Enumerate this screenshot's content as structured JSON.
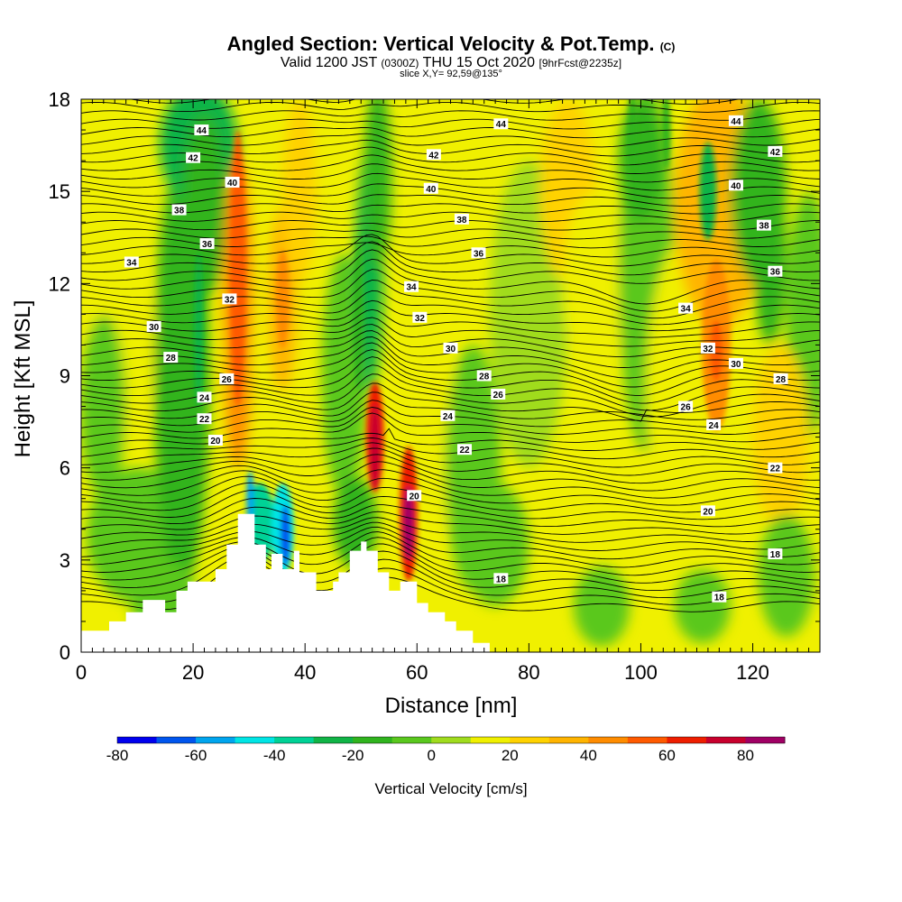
{
  "chart_data": {
    "type": "heatmap",
    "title": "Angled Section: Vertical Velocity & Pot.Temp.",
    "title_suffix": "(C)",
    "subtitle_valid": "Valid 1200 JST",
    "subtitle_zulu": "(0300Z)",
    "subtitle_date": "THU 15 Oct 2020",
    "subtitle_fcst": "[9hrFcst@2235z]",
    "slice_info": "slice X,Y= 92,59@135°",
    "xlabel": "Distance [nm]",
    "ylabel": "Height [Kft MSL]",
    "xlim": [
      0,
      132
    ],
    "ylim": [
      0,
      18
    ],
    "x_ticks": [
      0,
      20,
      40,
      60,
      80,
      100,
      120
    ],
    "y_ticks": [
      0,
      3,
      6,
      9,
      12,
      15,
      18
    ],
    "colorbar": {
      "label": "Vertical Velocity [cm/s]",
      "bins": [
        -80,
        -70,
        -60,
        -50,
        -40,
        -30,
        -20,
        -10,
        0,
        10,
        20,
        30,
        40,
        50,
        60,
        70,
        80,
        90
      ],
      "colors": [
        "#0000ee",
        "#0055ee",
        "#00a5ee",
        "#00e5e5",
        "#00d296",
        "#10b446",
        "#30b41e",
        "#5ac81e",
        "#a0dc1e",
        "#f0f000",
        "#ffd200",
        "#ffb400",
        "#ff8c00",
        "#ff5a00",
        "#ee1e00",
        "#c8002d",
        "#a00064"
      ],
      "tick_values": [
        -80,
        -60,
        -40,
        -20,
        0,
        20,
        40,
        60,
        80
      ],
      "tick_labels": [
        "-80",
        "-60",
        "-40",
        "-20",
        "0",
        "20",
        "40",
        "60",
        "80"
      ]
    },
    "theta_contour_labels": [
      {
        "text": "44",
        "x": 21.5,
        "y": 17.0
      },
      {
        "text": "42",
        "x": 20.0,
        "y": 16.1
      },
      {
        "text": "40",
        "x": 27.0,
        "y": 15.3
      },
      {
        "text": "38",
        "x": 17.5,
        "y": 14.4
      },
      {
        "text": "36",
        "x": 22.5,
        "y": 13.3
      },
      {
        "text": "34",
        "x": 9.0,
        "y": 12.7
      },
      {
        "text": "32",
        "x": 26.5,
        "y": 11.5
      },
      {
        "text": "30",
        "x": 13.0,
        "y": 10.6
      },
      {
        "text": "28",
        "x": 16.0,
        "y": 9.6
      },
      {
        "text": "26",
        "x": 26.0,
        "y": 8.9
      },
      {
        "text": "24",
        "x": 22.0,
        "y": 8.3
      },
      {
        "text": "22",
        "x": 22.0,
        "y": 7.6
      },
      {
        "text": "20",
        "x": 24.0,
        "y": 6.9
      },
      {
        "text": "44",
        "x": 75.0,
        "y": 17.2
      },
      {
        "text": "42",
        "x": 63.0,
        "y": 16.2
      },
      {
        "text": "40",
        "x": 62.5,
        "y": 15.1
      },
      {
        "text": "38",
        "x": 68.0,
        "y": 14.1
      },
      {
        "text": "36",
        "x": 71.0,
        "y": 13.0
      },
      {
        "text": "34",
        "x": 59.0,
        "y": 11.9
      },
      {
        "text": "32",
        "x": 60.5,
        "y": 10.9
      },
      {
        "text": "30",
        "x": 66.0,
        "y": 9.9
      },
      {
        "text": "28",
        "x": 72.0,
        "y": 9.0
      },
      {
        "text": "26",
        "x": 74.5,
        "y": 8.4
      },
      {
        "text": "24",
        "x": 65.5,
        "y": 7.7
      },
      {
        "text": "22",
        "x": 68.5,
        "y": 6.6
      },
      {
        "text": "20",
        "x": 59.5,
        "y": 5.1
      },
      {
        "text": "18",
        "x": 75.0,
        "y": 2.4
      },
      {
        "text": "44",
        "x": 117.0,
        "y": 17.3
      },
      {
        "text": "42",
        "x": 124.0,
        "y": 16.3
      },
      {
        "text": "40",
        "x": 117.0,
        "y": 15.2
      },
      {
        "text": "38",
        "x": 122.0,
        "y": 13.9
      },
      {
        "text": "36",
        "x": 124.0,
        "y": 12.4
      },
      {
        "text": "34",
        "x": 108.0,
        "y": 11.2
      },
      {
        "text": "32",
        "x": 112.0,
        "y": 9.9
      },
      {
        "text": "30",
        "x": 117.0,
        "y": 9.4
      },
      {
        "text": "28",
        "x": 125.0,
        "y": 8.9
      },
      {
        "text": "26",
        "x": 108.0,
        "y": 8.0
      },
      {
        "text": "24",
        "x": 113.0,
        "y": 7.4
      },
      {
        "text": "22",
        "x": 124.0,
        "y": 6.0
      },
      {
        "text": "20",
        "x": 112.0,
        "y": 4.6
      },
      {
        "text": "18",
        "x": 124.0,
        "y": 3.2
      },
      {
        "text": "18",
        "x": 114.0,
        "y": 1.8
      }
    ]
  }
}
